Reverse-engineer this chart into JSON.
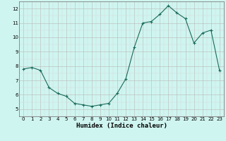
{
  "x": [
    0,
    1,
    2,
    3,
    4,
    5,
    6,
    7,
    8,
    9,
    10,
    11,
    12,
    13,
    14,
    15,
    16,
    17,
    18,
    19,
    20,
    21,
    22,
    23
  ],
  "y": [
    7.8,
    7.9,
    7.7,
    6.5,
    6.1,
    5.9,
    5.4,
    5.3,
    5.2,
    5.3,
    5.4,
    6.1,
    7.1,
    9.3,
    11.0,
    11.1,
    11.6,
    12.2,
    11.7,
    11.3,
    9.6,
    10.3,
    10.5,
    7.7
  ],
  "xlim": [
    -0.5,
    23.5
  ],
  "ylim": [
    4.5,
    12.5
  ],
  "yticks": [
    5,
    6,
    7,
    8,
    9,
    10,
    11,
    12
  ],
  "xticks": [
    0,
    1,
    2,
    3,
    4,
    5,
    6,
    7,
    8,
    9,
    10,
    11,
    12,
    13,
    14,
    15,
    16,
    17,
    18,
    19,
    20,
    21,
    22,
    23
  ],
  "xlabel": "Humidex (Indice chaleur)",
  "line_color": "#1a6b5a",
  "marker": "+",
  "marker_size": 3,
  "bg_color": "#cff5f0",
  "grid_major_color": "#b8b8b8",
  "grid_minor_color": "#d8d8d8",
  "spine_color": "#808080",
  "tick_fontsize": 5,
  "xlabel_fontsize": 6.5
}
